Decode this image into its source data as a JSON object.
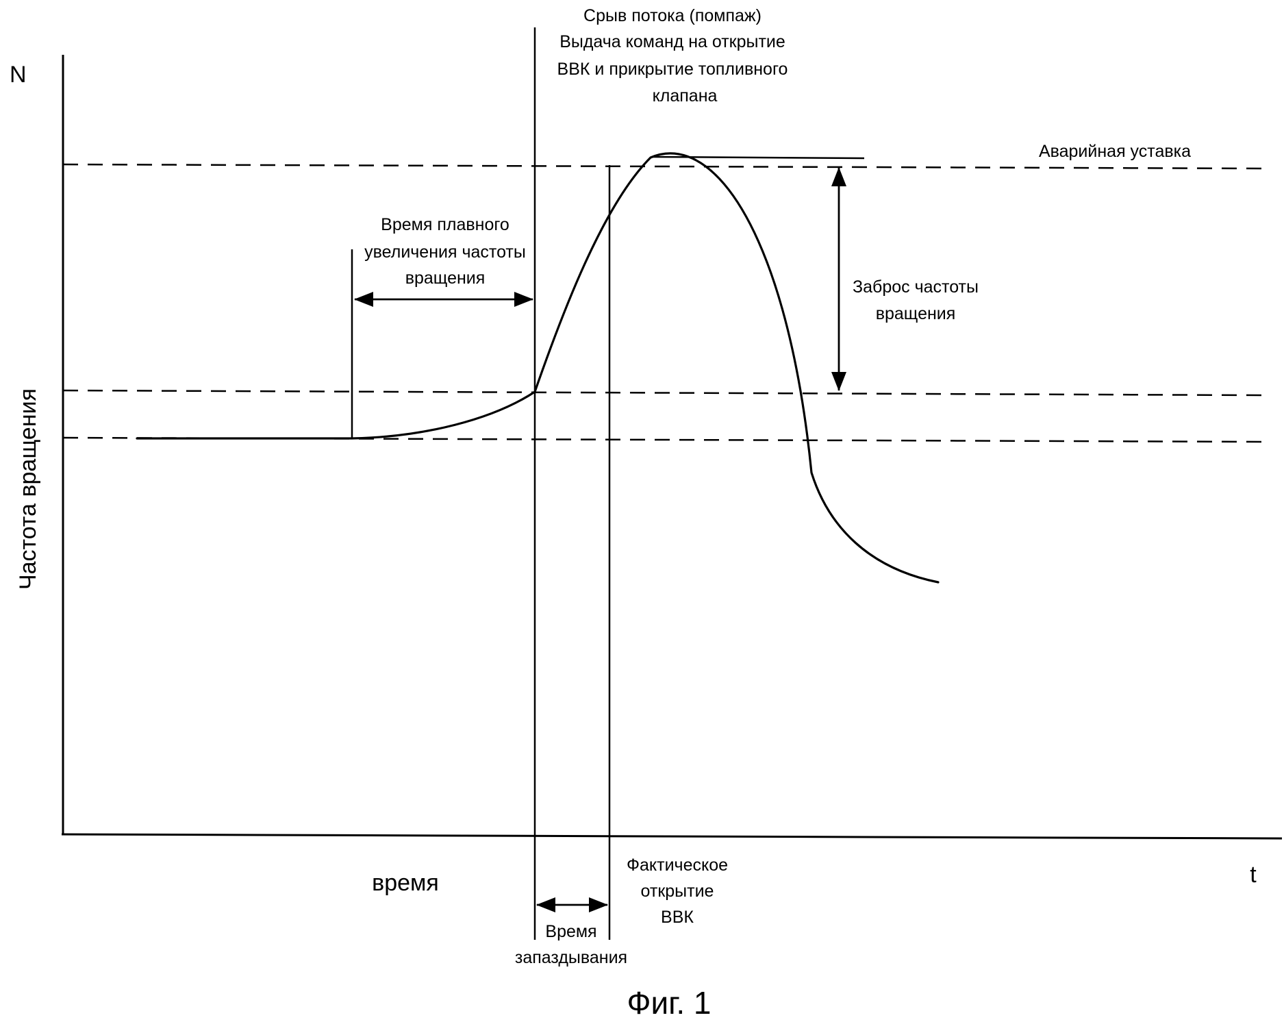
{
  "axes": {
    "y_symbol": "N",
    "y_label": "Частота вращения",
    "x_label": "время",
    "x_symbol": "t"
  },
  "surge_annotation": {
    "line1": "Срыв потока (помпаж)",
    "line2": "Выдача команд на открытие",
    "line3": "ВВК и прикрытие топливного",
    "line4": "клапана"
  },
  "emergency_setpoint": "Аварийная уставка",
  "ramp_time": {
    "line1": "Время плавного",
    "line2": "увеличения частоты",
    "line3": "вращения"
  },
  "overshoot": {
    "line1": "Заброс частоты",
    "line2": "вращения"
  },
  "actual_opening": {
    "line1": "Фактическое",
    "line2": "открытие",
    "line3": "ВВК"
  },
  "delay_time": {
    "line1": "Время",
    "line2": "запаздывания"
  },
  "caption": "Фиг. 1"
}
